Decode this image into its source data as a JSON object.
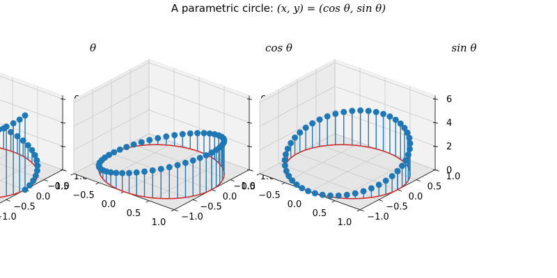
{
  "figure": {
    "suptitle_prefix": "A parametric circle: ",
    "suptitle_math": "(x, y) = (cos θ, sin θ)"
  },
  "chart_data": [
    {
      "type": "3d-stem",
      "title": "θ",
      "x": "cos θ",
      "y": "sin θ",
      "z": "θ",
      "theta_range": [
        0,
        6.283185307179586
      ],
      "n_points": 48,
      "series": [
        {
          "role": "circle",
          "color": "#d62728"
        },
        {
          "role": "stems",
          "color": "#1f77b4",
          "marker": "circle"
        }
      ],
      "x_ticks": [
        "−1.0",
        "−0.5",
        "0.0",
        "0.5",
        "1.0"
      ],
      "y_ticks": [
        "−1.0",
        "−0.5",
        "0.0",
        "0.5",
        "1.0"
      ],
      "z_ticks": [
        "0",
        "2",
        "4",
        "6"
      ],
      "grid": true
    },
    {
      "type": "3d-stem",
      "title": "cos θ",
      "x": "cos θ",
      "y": "sin θ",
      "z": "cos θ",
      "theta_range": [
        0,
        6.283185307179586
      ],
      "n_points": 48,
      "series": [
        {
          "role": "curve",
          "color": "#d62728"
        },
        {
          "role": "stems",
          "color": "#1f77b4",
          "marker": "circle"
        }
      ],
      "x_ticks": [
        "−1.0",
        "−0.5",
        "0.0",
        "0.5",
        "1.0"
      ],
      "y_ticks": [
        "−1.0",
        "−0.5",
        "0.0",
        "0.5",
        "1.0"
      ],
      "z_ticks": [
        "0",
        "2",
        "4",
        "6"
      ],
      "grid": true
    },
    {
      "type": "3d-stem",
      "title": "sin θ",
      "x": "cos θ",
      "y": "sin θ",
      "z": "sin θ",
      "theta_range": [
        0,
        6.283185307179586
      ],
      "n_points": 48,
      "series": [
        {
          "role": "curve",
          "color": "#d62728"
        },
        {
          "role": "stems",
          "color": "#1f77b4",
          "marker": "circle"
        }
      ],
      "x_ticks": [
        "−1.0",
        "−0.5",
        "0.0",
        "0.5",
        "1.0"
      ],
      "y_ticks": [
        "−1.0",
        "−0.5",
        "0.0",
        "0.5",
        "1.0"
      ],
      "z_ticks": [
        "0",
        "2",
        "4",
        "6"
      ],
      "grid": true
    }
  ]
}
